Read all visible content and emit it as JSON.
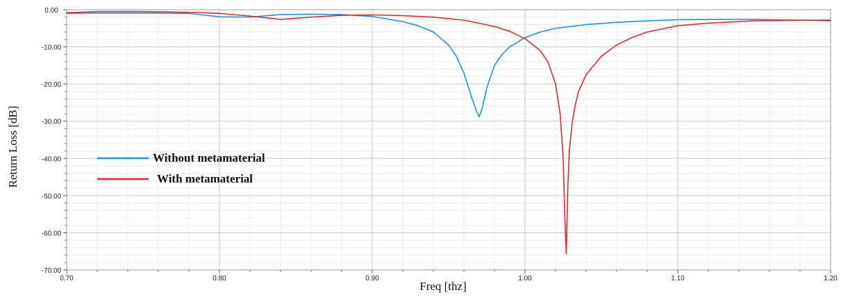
{
  "chart_data": {
    "type": "line",
    "xlabel": "Freq [thz]",
    "ylabel": "Return Loss [dB]",
    "xlim": [
      0.7,
      1.2
    ],
    "ylim": [
      -70,
      0
    ],
    "x_ticks": [
      "0.70",
      "0.80",
      "0.90",
      "1.00",
      "1.10",
      "1.20"
    ],
    "y_ticks": [
      "0.00",
      "-10.00",
      "-20.00",
      "-30.00",
      "-40.00",
      "-50.00",
      "-60.00",
      "-70.00"
    ],
    "grid": true,
    "legend_position": "middle-left",
    "series": [
      {
        "name": "Without metamaterial",
        "color": "#1e90e0",
        "x": [
          0.7,
          0.72,
          0.75,
          0.78,
          0.8,
          0.82,
          0.84,
          0.86,
          0.88,
          0.9,
          0.92,
          0.93,
          0.94,
          0.95,
          0.955,
          0.96,
          0.965,
          0.968,
          0.97,
          0.972,
          0.975,
          0.98,
          0.985,
          0.99,
          1.0,
          1.01,
          1.02,
          1.04,
          1.06,
          1.08,
          1.1,
          1.12,
          1.15,
          1.18,
          1.2
        ],
        "y": [
          -1.0,
          -0.9,
          -0.9,
          -1.0,
          -1.9,
          -2.0,
          -1.3,
          -1.2,
          -1.3,
          -1.8,
          -3.2,
          -4.3,
          -6.0,
          -9.5,
          -12.5,
          -17.0,
          -23.5,
          -27.0,
          -28.8,
          -26.5,
          -21.0,
          -15.0,
          -12.0,
          -10.0,
          -7.5,
          -6.0,
          -5.0,
          -4.0,
          -3.4,
          -3.0,
          -2.7,
          -2.6,
          -2.6,
          -2.8,
          -3.0
        ]
      },
      {
        "name": "With metamaterial",
        "color": "#e0282a",
        "x": [
          0.7,
          0.72,
          0.75,
          0.78,
          0.8,
          0.82,
          0.84,
          0.86,
          0.88,
          0.9,
          0.92,
          0.94,
          0.96,
          0.98,
          0.99,
          1.0,
          1.01,
          1.015,
          1.02,
          1.023,
          1.025,
          1.026,
          1.027,
          1.028,
          1.029,
          1.031,
          1.033,
          1.035,
          1.04,
          1.05,
          1.06,
          1.07,
          1.08,
          1.1,
          1.12,
          1.15,
          1.18,
          1.2
        ],
        "y": [
          -0.8,
          -0.5,
          -0.5,
          -0.7,
          -1.0,
          -1.7,
          -2.6,
          -2.0,
          -1.5,
          -1.4,
          -1.6,
          -2.0,
          -2.8,
          -4.5,
          -5.8,
          -7.8,
          -11.0,
          -14.0,
          -20.0,
          -28.0,
          -40.0,
          -55.0,
          -65.7,
          -48.0,
          -38.0,
          -30.0,
          -25.5,
          -22.0,
          -17.5,
          -12.5,
          -9.5,
          -7.5,
          -6.0,
          -4.3,
          -3.6,
          -3.0,
          -2.8,
          -2.8
        ]
      }
    ]
  }
}
